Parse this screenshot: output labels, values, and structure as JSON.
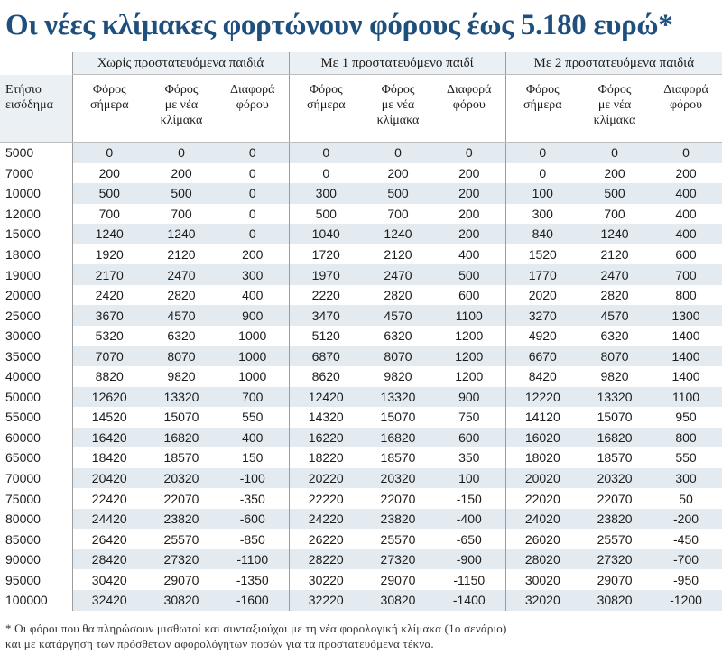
{
  "title": "Οι νέες κλίμακες φορτώνουν φόρους έως 5.180 ευρώ*",
  "groups": [
    "Χωρίς προστατευόμενα παιδιά",
    "Με 1 προστατευόμενο παιδί",
    "Με 2 προστατευόμενα παιδιά"
  ],
  "income_header": [
    "Ετήσιο",
    "εισόδημα"
  ],
  "subheaders": [
    [
      "Φόρος",
      "σήμερα"
    ],
    [
      "Φόρος",
      "με νέα",
      "κλίμακα"
    ],
    [
      "Διαφορά",
      "φόρου"
    ]
  ],
  "rows": [
    [
      "5000",
      "0",
      "0",
      "0",
      "0",
      "0",
      "0",
      "0",
      "0",
      "0"
    ],
    [
      "7000",
      "200",
      "200",
      "0",
      "0",
      "200",
      "200",
      "0",
      "200",
      "200"
    ],
    [
      "10000",
      "500",
      "500",
      "0",
      "300",
      "500",
      "200",
      "100",
      "500",
      "400"
    ],
    [
      "12000",
      "700",
      "700",
      "0",
      "500",
      "700",
      "200",
      "300",
      "700",
      "400"
    ],
    [
      "15000",
      "1240",
      "1240",
      "0",
      "1040",
      "1240",
      "200",
      "840",
      "1240",
      "400"
    ],
    [
      "18000",
      "1920",
      "2120",
      "200",
      "1720",
      "2120",
      "400",
      "1520",
      "2120",
      "600"
    ],
    [
      "19000",
      "2170",
      "2470",
      "300",
      "1970",
      "2470",
      "500",
      "1770",
      "2470",
      "700"
    ],
    [
      "20000",
      "2420",
      "2820",
      "400",
      "2220",
      "2820",
      "600",
      "2020",
      "2820",
      "800"
    ],
    [
      "25000",
      "3670",
      "4570",
      "900",
      "3470",
      "4570",
      "1100",
      "3270",
      "4570",
      "1300"
    ],
    [
      "30000",
      "5320",
      "6320",
      "1000",
      "5120",
      "6320",
      "1200",
      "4920",
      "6320",
      "1400"
    ],
    [
      "35000",
      "7070",
      "8070",
      "1000",
      "6870",
      "8070",
      "1200",
      "6670",
      "8070",
      "1400"
    ],
    [
      "40000",
      "8820",
      "9820",
      "1000",
      "8620",
      "9820",
      "1200",
      "8420",
      "9820",
      "1400"
    ],
    [
      "50000",
      "12620",
      "13320",
      "700",
      "12420",
      "13320",
      "900",
      "12220",
      "13320",
      "1100"
    ],
    [
      "55000",
      "14520",
      "15070",
      "550",
      "14320",
      "15070",
      "750",
      "14120",
      "15070",
      "950"
    ],
    [
      "60000",
      "16420",
      "16820",
      "400",
      "16220",
      "16820",
      "600",
      "16020",
      "16820",
      "800"
    ],
    [
      "65000",
      "18420",
      "18570",
      "150",
      "18220",
      "18570",
      "350",
      "18020",
      "18570",
      "550"
    ],
    [
      "70000",
      "20420",
      "20320",
      "-100",
      "20220",
      "20320",
      "100",
      "20020",
      "20320",
      "300"
    ],
    [
      "75000",
      "22420",
      "22070",
      "-350",
      "22220",
      "22070",
      "-150",
      "22020",
      "22070",
      "50"
    ],
    [
      "80000",
      "24420",
      "23820",
      "-600",
      "24220",
      "23820",
      "-400",
      "24020",
      "23820",
      "-200"
    ],
    [
      "85000",
      "26420",
      "25570",
      "-850",
      "26220",
      "25570",
      "-650",
      "26020",
      "25570",
      "-450"
    ],
    [
      "90000",
      "28420",
      "27320",
      "-1100",
      "28220",
      "27320",
      "-900",
      "28020",
      "27320",
      "-700"
    ],
    [
      "95000",
      "30420",
      "29070",
      "-1350",
      "30220",
      "29070",
      "-1150",
      "30020",
      "29070",
      "-950"
    ],
    [
      "100000",
      "32420",
      "30820",
      "-1600",
      "32220",
      "30820",
      "-1400",
      "32020",
      "30820",
      "-1200"
    ]
  ],
  "footnote": [
    "* Οι φόροι που θα πληρώσουν μισθωτοί και συνταξιούχοι με τη νέα φορολογική κλίμακα (1ο σενάριο)",
    "και με κατάργηση των πρόσθετων αφορολόγητων ποσών για τα προστατευόμενα τέκνα."
  ],
  "colors": {
    "title": "#1f4f7c",
    "band": "#e3ebf1",
    "header_band": "#eaf0f4"
  }
}
